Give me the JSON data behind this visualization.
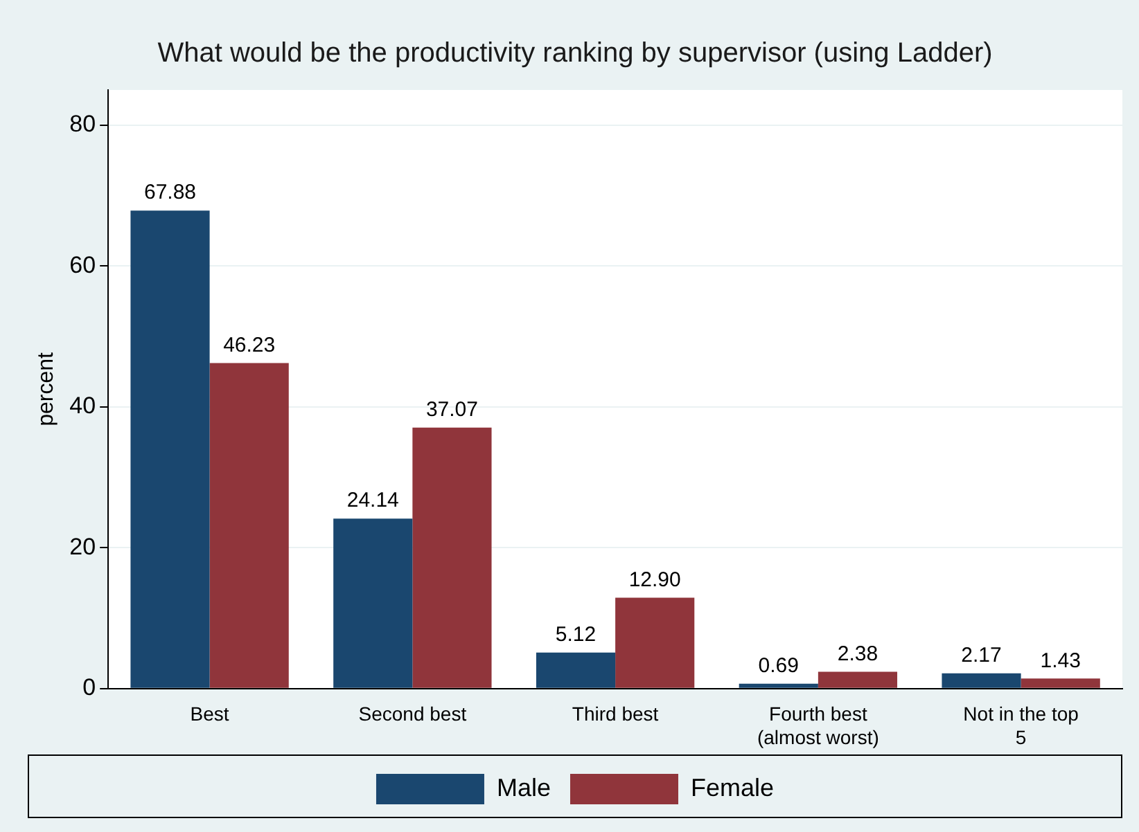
{
  "chart_data": {
    "type": "bar",
    "title": "What would be the productivity ranking by supervisor (using Ladder)",
    "ylabel": "percent",
    "categories": [
      "Best",
      "Second best",
      "Third best",
      "Fourth best (almost worst)",
      "Not in the top 5"
    ],
    "series": [
      {
        "name": "Male",
        "color": "#1a476f",
        "values": [
          67.88,
          24.14,
          5.12,
          0.69,
          2.17
        ],
        "value_labels": [
          "67.88",
          "24.14",
          "5.12",
          "0.69",
          "2.17"
        ]
      },
      {
        "name": "Female",
        "color": "#90353b",
        "values": [
          46.23,
          37.07,
          12.9,
          2.38,
          1.43
        ],
        "value_labels": [
          "46.23",
          "37.07",
          "12.90",
          "2.38",
          "1.43"
        ]
      }
    ],
    "ylim": [
      0,
      85
    ],
    "yticks": [
      0,
      20,
      40,
      60,
      80
    ],
    "grid": "y",
    "legend": "bottom"
  }
}
